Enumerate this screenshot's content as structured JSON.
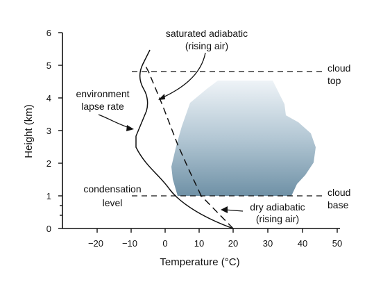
{
  "axes": {
    "x_title": "Temperature (°C)",
    "y_title": "Height (km)",
    "x_ticks": [
      "−20",
      "−10",
      "0",
      "10",
      "20",
      "30",
      "40",
      "50"
    ],
    "y_ticks": [
      "0",
      "1",
      "2",
      "3",
      "4",
      "5",
      "6"
    ]
  },
  "annotations": {
    "saturated_adiabatic": [
      "saturated adiabatic",
      "(rising air)"
    ],
    "environment_lapse_rate": [
      "environment",
      "lapse rate"
    ],
    "condensation_level": [
      "condensation",
      "level"
    ],
    "dry_adiabatic": [
      "dry adiabatic",
      "(rising air)"
    ],
    "cloud_top": [
      "cloud",
      "top"
    ],
    "cloud_base": [
      "cloud",
      "base"
    ]
  },
  "colors": {
    "cloud_top": "#e8eef3",
    "cloud_bottom": "#6f91a6",
    "ink": "#111111"
  }
}
